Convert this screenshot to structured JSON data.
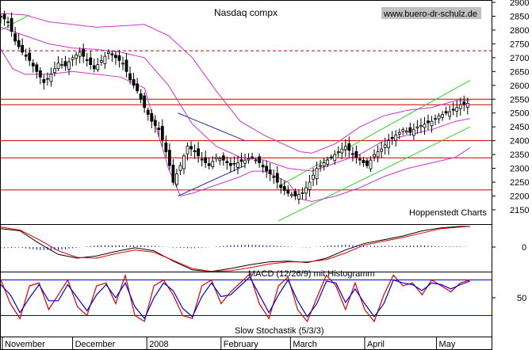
{
  "chart_data": [
    {
      "type": "candlestick",
      "title": "Nasdaq compx",
      "watermark": "www.buero-dr-schulz.de",
      "source_label": "Hoppenstedt Charts",
      "ylim": [
        2125,
        2925
      ],
      "y_ticks": [
        2150,
        2200,
        2250,
        2300,
        2350,
        2400,
        2450,
        2500,
        2550,
        2600,
        2650,
        2700,
        2750,
        2800,
        2850,
        2900
      ],
      "x_months": [
        "November",
        "December",
        "2008",
        "February",
        "March",
        "April",
        "May"
      ],
      "x_range_days": [
        0,
        205
      ],
      "month_starts_days": [
        0,
        30,
        61,
        92,
        121,
        152,
        182
      ],
      "horizontal_lines": [
        {
          "value": 2725,
          "style": "dashed",
          "color": "#cc0000"
        },
        {
          "value": 2550,
          "style": "solid",
          "color": "#cc0000"
        },
        {
          "value": 2530,
          "style": "solid",
          "color": "#cc0000"
        },
        {
          "value": 2400,
          "style": "solid",
          "color": "#cc0000"
        },
        {
          "value": 2338,
          "style": "solid",
          "color": "#cc0000"
        },
        {
          "value": 2222,
          "style": "solid",
          "color": "#cc0000"
        }
      ],
      "trend_lines": [
        {
          "color": "#33cc33",
          "points": [
            [
              0,
              2800
            ],
            [
              12,
              2855
            ]
          ]
        },
        {
          "color": "#33cc33",
          "points": [
            [
              116,
              2235
            ],
            [
              196,
              2618
            ]
          ]
        },
        {
          "color": "#33cc33",
          "points": [
            [
              116,
              2110
            ],
            [
              196,
              2450
            ]
          ]
        },
        {
          "color": "#1f2fa0",
          "points": [
            [
              74,
              2500
            ],
            [
              102,
              2400
            ]
          ]
        },
        {
          "color": "#1f2fa0",
          "points": [
            [
              74,
              2200
            ],
            [
              102,
              2310
            ]
          ]
        }
      ],
      "bollinger_upper": [
        [
          0,
          2860
        ],
        [
          10,
          2855
        ],
        [
          20,
          2830
        ],
        [
          30,
          2820
        ],
        [
          40,
          2810
        ],
        [
          50,
          2815
        ],
        [
          60,
          2820
        ],
        [
          70,
          2780
        ],
        [
          80,
          2700
        ],
        [
          90,
          2580
        ],
        [
          100,
          2470
        ],
        [
          110,
          2420
        ],
        [
          115,
          2400
        ],
        [
          120,
          2380
        ],
        [
          125,
          2360
        ],
        [
          130,
          2355
        ],
        [
          140,
          2390
        ],
        [
          145,
          2420
        ],
        [
          150,
          2450
        ],
        [
          160,
          2490
        ],
        [
          170,
          2510
        ],
        [
          180,
          2520
        ],
        [
          190,
          2545
        ],
        [
          196,
          2545
        ]
      ],
      "bollinger_middle": [
        [
          0,
          2810
        ],
        [
          10,
          2780
        ],
        [
          20,
          2750
        ],
        [
          30,
          2735
        ],
        [
          40,
          2730
        ],
        [
          50,
          2720
        ],
        [
          60,
          2700
        ],
        [
          70,
          2600
        ],
        [
          80,
          2460
        ],
        [
          90,
          2380
        ],
        [
          100,
          2340
        ],
        [
          110,
          2330
        ],
        [
          120,
          2300
        ],
        [
          130,
          2290
        ],
        [
          140,
          2320
        ],
        [
          150,
          2350
        ],
        [
          160,
          2400
        ],
        [
          170,
          2420
        ],
        [
          180,
          2440
        ],
        [
          190,
          2470
        ],
        [
          196,
          2480
        ]
      ],
      "bollinger_lower": [
        [
          0,
          2730
        ],
        [
          5,
          2660
        ],
        [
          10,
          2640
        ],
        [
          20,
          2640
        ],
        [
          30,
          2650
        ],
        [
          40,
          2640
        ],
        [
          50,
          2630
        ],
        [
          60,
          2590
        ],
        [
          70,
          2300
        ],
        [
          75,
          2200
        ],
        [
          80,
          2210
        ],
        [
          90,
          2240
        ],
        [
          100,
          2270
        ],
        [
          105,
          2290
        ],
        [
          110,
          2290
        ],
        [
          120,
          2250
        ],
        [
          125,
          2190
        ],
        [
          130,
          2180
        ],
        [
          140,
          2200
        ],
        [
          150,
          2230
        ],
        [
          160,
          2270
        ],
        [
          170,
          2300
        ],
        [
          180,
          2320
        ],
        [
          190,
          2340
        ],
        [
          196,
          2375
        ]
      ],
      "price_path": [
        [
          0,
          2850
        ],
        [
          3,
          2830
        ],
        [
          6,
          2760
        ],
        [
          9,
          2720
        ],
        [
          12,
          2690
        ],
        [
          15,
          2650
        ],
        [
          18,
          2610
        ],
        [
          21,
          2640
        ],
        [
          24,
          2680
        ],
        [
          27,
          2670
        ],
        [
          30,
          2700
        ],
        [
          33,
          2720
        ],
        [
          36,
          2690
        ],
        [
          39,
          2660
        ],
        [
          42,
          2690
        ],
        [
          45,
          2720
        ],
        [
          48,
          2700
        ],
        [
          51,
          2680
        ],
        [
          54,
          2620
        ],
        [
          57,
          2580
        ],
        [
          60,
          2520
        ],
        [
          63,
          2470
        ],
        [
          66,
          2440
        ],
        [
          68,
          2390
        ],
        [
          70,
          2330
        ],
        [
          72,
          2250
        ],
        [
          75,
          2310
        ],
        [
          78,
          2380
        ],
        [
          81,
          2360
        ],
        [
          84,
          2330
        ],
        [
          87,
          2310
        ],
        [
          90,
          2340
        ],
        [
          93,
          2330
        ],
        [
          96,
          2310
        ],
        [
          99,
          2320
        ],
        [
          102,
          2330
        ],
        [
          105,
          2340
        ],
        [
          108,
          2320
        ],
        [
          111,
          2290
        ],
        [
          114,
          2270
        ],
        [
          117,
          2230
        ],
        [
          120,
          2210
        ],
        [
          123,
          2200
        ],
        [
          126,
          2210
        ],
        [
          129,
          2250
        ],
        [
          132,
          2300
        ],
        [
          135,
          2320
        ],
        [
          138,
          2340
        ],
        [
          141,
          2360
        ],
        [
          144,
          2380
        ],
        [
          147,
          2350
        ],
        [
          150,
          2330
        ],
        [
          153,
          2310
        ],
        [
          156,
          2350
        ],
        [
          159,
          2370
        ],
        [
          162,
          2400
        ],
        [
          165,
          2420
        ],
        [
          168,
          2440
        ],
        [
          171,
          2430
        ],
        [
          174,
          2450
        ],
        [
          177,
          2460
        ],
        [
          180,
          2470
        ],
        [
          183,
          2490
        ],
        [
          186,
          2500
        ],
        [
          189,
          2510
        ],
        [
          192,
          2530
        ],
        [
          195,
          2535
        ]
      ]
    },
    {
      "type": "line",
      "label": "MACD (12/26/9) mit Histogramm",
      "y_ticks": [
        0
      ],
      "ylim": [
        -90,
        75
      ],
      "macd": [
        [
          0,
          50
        ],
        [
          8,
          44
        ],
        [
          16,
          10
        ],
        [
          24,
          -20
        ],
        [
          32,
          -30
        ],
        [
          40,
          -24
        ],
        [
          48,
          -12
        ],
        [
          56,
          -2
        ],
        [
          64,
          -10
        ],
        [
          72,
          -38
        ],
        [
          80,
          -62
        ],
        [
          88,
          -66
        ],
        [
          96,
          -58
        ],
        [
          104,
          -48
        ],
        [
          112,
          -40
        ],
        [
          120,
          -38
        ],
        [
          128,
          -42
        ],
        [
          136,
          -30
        ],
        [
          144,
          -8
        ],
        [
          152,
          10
        ],
        [
          160,
          20
        ],
        [
          168,
          30
        ],
        [
          176,
          44
        ],
        [
          184,
          52
        ],
        [
          192,
          56
        ],
        [
          196,
          56
        ]
      ],
      "signal": [
        [
          0,
          54
        ],
        [
          8,
          46
        ],
        [
          16,
          20
        ],
        [
          24,
          -10
        ],
        [
          32,
          -28
        ],
        [
          40,
          -30
        ],
        [
          48,
          -18
        ],
        [
          56,
          -8
        ],
        [
          64,
          -14
        ],
        [
          72,
          -36
        ],
        [
          80,
          -58
        ],
        [
          88,
          -66
        ],
        [
          96,
          -64
        ],
        [
          104,
          -56
        ],
        [
          112,
          -46
        ],
        [
          120,
          -40
        ],
        [
          128,
          -40
        ],
        [
          136,
          -34
        ],
        [
          144,
          -16
        ],
        [
          152,
          6
        ],
        [
          160,
          16
        ],
        [
          168,
          26
        ],
        [
          176,
          38
        ],
        [
          184,
          50
        ],
        [
          192,
          54
        ],
        [
          196,
          56
        ]
      ]
    },
    {
      "type": "line",
      "label": "Slow Stochastik (5/3/3)",
      "y_ticks": [
        50
      ],
      "ylim": [
        0,
        100
      ],
      "reference_lines": [
        80,
        20
      ],
      "k": [
        [
          0,
          80
        ],
        [
          4,
          40
        ],
        [
          8,
          15
        ],
        [
          12,
          70
        ],
        [
          16,
          75
        ],
        [
          20,
          30
        ],
        [
          24,
          55
        ],
        [
          28,
          80
        ],
        [
          32,
          35
        ],
        [
          36,
          20
        ],
        [
          40,
          70
        ],
        [
          44,
          75
        ],
        [
          48,
          40
        ],
        [
          52,
          88
        ],
        [
          56,
          20
        ],
        [
          60,
          10
        ],
        [
          64,
          70
        ],
        [
          68,
          80
        ],
        [
          72,
          55
        ],
        [
          76,
          20
        ],
        [
          80,
          15
        ],
        [
          84,
          70
        ],
        [
          88,
          80
        ],
        [
          92,
          40
        ],
        [
          96,
          60
        ],
        [
          100,
          75
        ],
        [
          104,
          90
        ],
        [
          108,
          40
        ],
        [
          112,
          15
        ],
        [
          116,
          70
        ],
        [
          120,
          85
        ],
        [
          124,
          30
        ],
        [
          128,
          10
        ],
        [
          132,
          50
        ],
        [
          136,
          88
        ],
        [
          140,
          70
        ],
        [
          144,
          30
        ],
        [
          148,
          75
        ],
        [
          152,
          30
        ],
        [
          156,
          10
        ],
        [
          160,
          55
        ],
        [
          164,
          88
        ],
        [
          168,
          70
        ],
        [
          172,
          75
        ],
        [
          176,
          55
        ],
        [
          180,
          80
        ],
        [
          184,
          70
        ],
        [
          188,
          60
        ],
        [
          192,
          75
        ],
        [
          196,
          80
        ]
      ],
      "d": [
        [
          0,
          72
        ],
        [
          4,
          55
        ],
        [
          8,
          25
        ],
        [
          12,
          50
        ],
        [
          16,
          72
        ],
        [
          20,
          45
        ],
        [
          24,
          45
        ],
        [
          28,
          72
        ],
        [
          32,
          50
        ],
        [
          36,
          28
        ],
        [
          40,
          55
        ],
        [
          44,
          72
        ],
        [
          48,
          50
        ],
        [
          52,
          75
        ],
        [
          56,
          35
        ],
        [
          60,
          15
        ],
        [
          64,
          50
        ],
        [
          68,
          75
        ],
        [
          72,
          62
        ],
        [
          76,
          32
        ],
        [
          80,
          18
        ],
        [
          84,
          52
        ],
        [
          88,
          75
        ],
        [
          92,
          52
        ],
        [
          96,
          55
        ],
        [
          100,
          70
        ],
        [
          104,
          85
        ],
        [
          108,
          55
        ],
        [
          112,
          25
        ],
        [
          116,
          55
        ],
        [
          120,
          80
        ],
        [
          124,
          45
        ],
        [
          128,
          18
        ],
        [
          132,
          40
        ],
        [
          136,
          78
        ],
        [
          140,
          75
        ],
        [
          144,
          42
        ],
        [
          148,
          65
        ],
        [
          152,
          40
        ],
        [
          156,
          18
        ],
        [
          160,
          40
        ],
        [
          164,
          80
        ],
        [
          168,
          75
        ],
        [
          172,
          72
        ],
        [
          176,
          62
        ],
        [
          180,
          75
        ],
        [
          184,
          72
        ],
        [
          188,
          65
        ],
        [
          192,
          72
        ],
        [
          196,
          78
        ]
      ]
    }
  ]
}
